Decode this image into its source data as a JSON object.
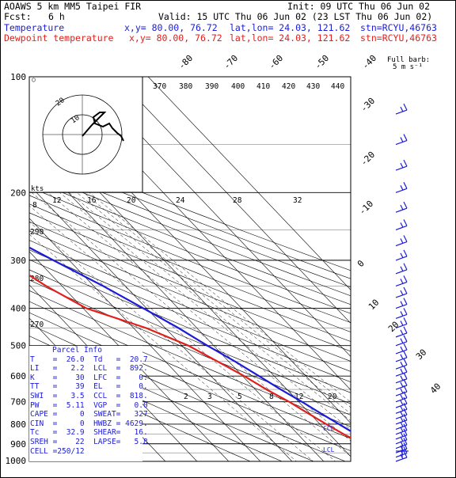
{
  "header": {
    "title": "AOAWS 5 km MM5 Taipei FIR",
    "init": "Init: 09 UTC Thu 06 Jun 02",
    "fcst_label": "Fcst:",
    "fcst_value": "6 h",
    "valid": "Valid: 15 UTC Thu 06 Jun 02 (23 LST Thu 06 Jun 02)",
    "temp_label": "Temperature",
    "temp_xy": "x,y= 80.00, 76.72",
    "temp_latlon": "lat,lon= 24.03, 121.62",
    "temp_stn": "stn=RCYU,46763",
    "dew_label": "Dewpoint temperature",
    "dew_xy": "x,y= 80.00, 76.72",
    "dew_latlon": "lat,lon= 24.03, 121.62",
    "dew_stn": "stn=RCYU,46763"
  },
  "wind_legend": {
    "line1": "Full barb:",
    "line2": "5 m s⁻¹"
  },
  "hodograph": {
    "label": "kts",
    "ring_labels": [
      "20",
      "10"
    ]
  },
  "parcel_info": {
    "title": "Parcel Info",
    "rows": [
      {
        "k1": "T",
        "v1": "26.0",
        "k2": "Td",
        "v2": "20.7"
      },
      {
        "k1": "LI",
        "v1": "2.2",
        "k2": "LCL",
        "v2": "892."
      },
      {
        "k1": "K",
        "v1": "30",
        "k2": "LFC",
        "v2": "0."
      },
      {
        "k1": "TT",
        "v1": "39",
        "k2": "EL",
        "v2": "0."
      },
      {
        "k1": "SWI",
        "v1": "3.5",
        "k2": "CCL",
        "v2": "818."
      },
      {
        "k1": "PW",
        "v1": "5.11",
        "k2": "VGP",
        "v2": "0.0"
      },
      {
        "k1": "CAPE",
        "v1": "0",
        "k2": "SWEAT",
        "v2": "327"
      },
      {
        "k1": "CIN",
        "v1": "0",
        "k2": "HWBZ",
        "v2": "4629."
      },
      {
        "k1": "Tc",
        "v1": "32.9",
        "k2": "SHEAR",
        "v2": "16."
      },
      {
        "k1": "SREH",
        "v1": "22",
        "k2": "LAPSE",
        "v2": "5.8"
      },
      {
        "k1": "CELL",
        "v1": "250/12",
        "k2": "",
        "v2": ""
      }
    ]
  },
  "markers": {
    "lcl": "LCL",
    "ccl": "CCL"
  },
  "chart_data": {
    "type": "line",
    "title": "",
    "xlabel": "",
    "ylabel": "",
    "yscale": "log",
    "ylim": [
      1000,
      100
    ],
    "pressure_ticks": [
      "100",
      "200",
      "300",
      "400",
      "500",
      "600",
      "700",
      "800",
      "900",
      "1000"
    ],
    "top_temperature_labels": [
      "-80",
      "-70",
      "-60",
      "-50",
      "-40"
    ],
    "right_temperature_labels": [
      "-30",
      "-20",
      "-10",
      "0",
      "10",
      "20",
      "30",
      "40"
    ],
    "theta_labels": [
      "370",
      "380",
      "390",
      "400",
      "410",
      "420",
      "430",
      "440"
    ],
    "mixing_ratio_labels_top": [
      "12",
      "16",
      "20",
      "24",
      "28",
      "32"
    ],
    "mixing_ratio_labels_bottom": [
      "2",
      "3",
      "5",
      "8",
      "12",
      "20"
    ],
    "saturated_adiabat_labels": [
      "8",
      "290",
      "280",
      "270"
    ],
    "series": [
      {
        "name": "Temperature",
        "color": "#1c1cd6",
        "points": [
          {
            "p": 1000,
            "t": 26.0
          },
          {
            "p": 950,
            "t": 23.5
          },
          {
            "p": 900,
            "t": 20.5
          },
          {
            "p": 850,
            "t": 18.3
          },
          {
            "p": 800,
            "t": 16.0
          },
          {
            "p": 750,
            "t": 13.5
          },
          {
            "p": 700,
            "t": 11.0
          },
          {
            "p": 650,
            "t": 8.0
          },
          {
            "p": 600,
            "t": 5.2
          },
          {
            "p": 550,
            "t": 2.0
          },
          {
            "p": 500,
            "t": -2.0
          },
          {
            "p": 450,
            "t": -5.8
          },
          {
            "p": 400,
            "t": -11.0
          },
          {
            "p": 350,
            "t": -17.0
          },
          {
            "p": 300,
            "t": -25.0
          },
          {
            "p": 250,
            "t": -34.0
          },
          {
            "p": 200,
            "t": -46.0
          },
          {
            "p": 175,
            "t": -53.0
          },
          {
            "p": 150,
            "t": -63.0
          },
          {
            "p": 125,
            "t": -68.0
          },
          {
            "p": 100,
            "t": -72.0
          }
        ]
      },
      {
        "name": "Dewpoint temperature",
        "color": "#e0201c",
        "points": [
          {
            "p": 1000,
            "t": 20.7
          },
          {
            "p": 975,
            "t": 19.5
          },
          {
            "p": 950,
            "t": 18.5
          },
          {
            "p": 925,
            "t": 17.0
          },
          {
            "p": 900,
            "t": 17.5
          },
          {
            "p": 850,
            "t": 14.5
          },
          {
            "p": 800,
            "t": 12.0
          },
          {
            "p": 750,
            "t": 9.5
          },
          {
            "p": 700,
            "t": 7.0
          },
          {
            "p": 650,
            "t": 3.5
          },
          {
            "p": 600,
            "t": 0.5
          },
          {
            "p": 550,
            "t": -3.5
          },
          {
            "p": 500,
            "t": -8.0
          },
          {
            "p": 450,
            "t": -16.0
          },
          {
            "p": 400,
            "t": -29.0
          },
          {
            "p": 350,
            "t": -35.0
          },
          {
            "p": 300,
            "t": -40.0
          },
          {
            "p": 250,
            "t": -40.0
          },
          {
            "p": 200,
            "t": -47.0
          },
          {
            "p": 150,
            "t": -63.0
          },
          {
            "p": 125,
            "t": -73.0
          },
          {
            "p": 100,
            "t": -78.0
          }
        ]
      }
    ],
    "wind_barbs": {
      "pressures": [
        1000,
        975,
        950,
        925,
        900,
        875,
        850,
        825,
        800,
        775,
        750,
        725,
        700,
        675,
        650,
        625,
        600,
        575,
        550,
        525,
        500,
        475,
        450,
        425,
        400,
        375,
        350,
        325,
        300,
        275,
        250,
        225,
        200,
        175,
        150,
        125
      ],
      "color": "#1c1cd6"
    },
    "grid": true
  }
}
